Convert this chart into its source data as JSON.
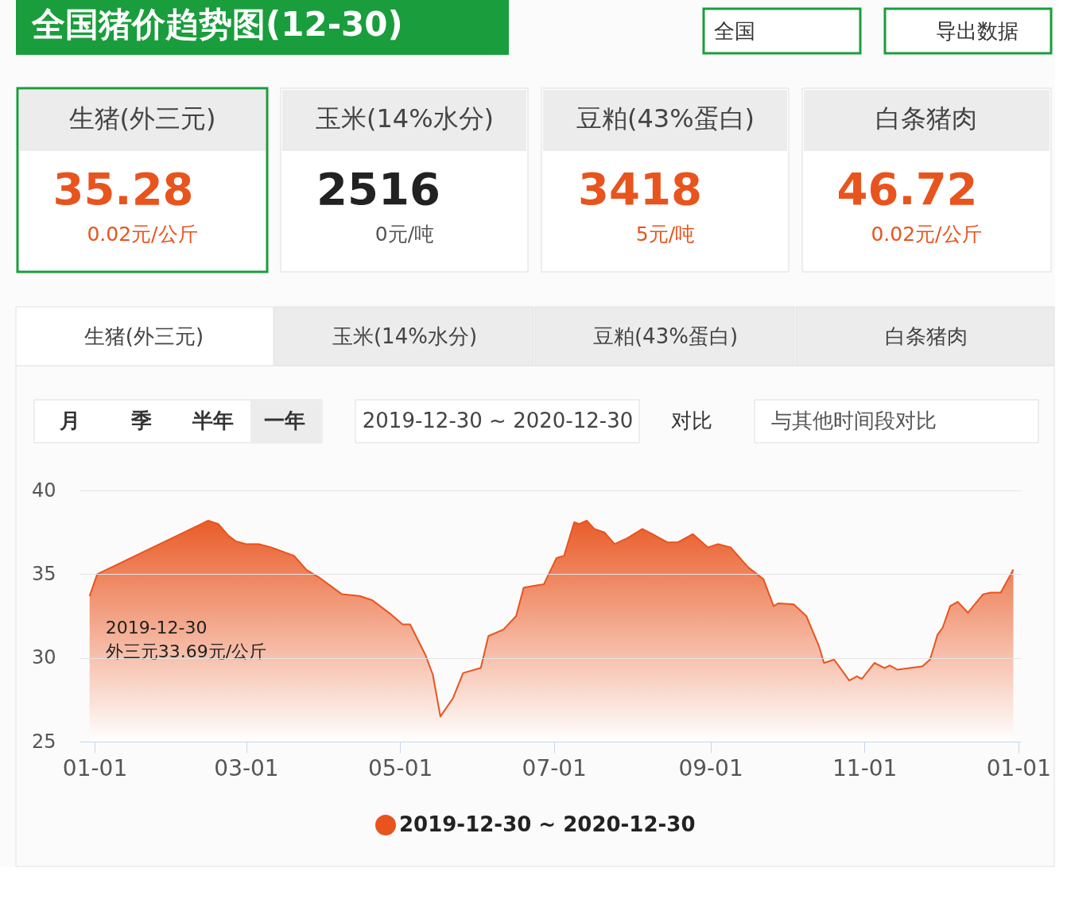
{
  "chart_data": {
    "type": "area",
    "title": "全国猪价趋势图(12-30)",
    "x": [
      "2019-12-30",
      "2020-01-02",
      "2020-02-15",
      "2020-02-19",
      "2020-02-23",
      "2020-02-26",
      "2020-03-01",
      "2020-03-06",
      "2020-03-11",
      "2020-03-20",
      "2020-03-25",
      "2020-03-30",
      "2020-04-08",
      "2020-04-15",
      "2020-04-20",
      "2020-04-27",
      "2020-05-02",
      "2020-05-05",
      "2020-05-11",
      "2020-05-14",
      "2020-05-17",
      "2020-05-22",
      "2020-05-26",
      "2020-06-02",
      "2020-06-05",
      "2020-06-11",
      "2020-06-16",
      "2020-06-19",
      "2020-06-23",
      "2020-06-27",
      "2020-07-02",
      "2020-07-05",
      "2020-07-09",
      "2020-07-11",
      "2020-07-14",
      "2020-07-17",
      "2020-07-21",
      "2020-07-25",
      "2020-07-30",
      "2020-08-05",
      "2020-08-09",
      "2020-08-15",
      "2020-08-19",
      "2020-08-25",
      "2020-08-31",
      "2020-09-04",
      "2020-09-09",
      "2020-09-16",
      "2020-09-22",
      "2020-09-26",
      "2020-09-28",
      "2020-10-04",
      "2020-10-09",
      "2020-10-14",
      "2020-10-16",
      "2020-10-20",
      "2020-10-26",
      "2020-10-29",
      "2020-10-31",
      "2020-11-05",
      "2020-11-09",
      "2020-11-11",
      "2020-11-14",
      "2020-11-24",
      "2020-11-27",
      "2020-11-30",
      "2020-12-02",
      "2020-12-05",
      "2020-12-08",
      "2020-12-12",
      "2020-12-18",
      "2020-12-21",
      "2020-12-25",
      "2020-12-30"
    ],
    "series": [
      {
        "name": "2019-12-30 ~ 2020-12-30",
        "color": "#e8541e",
        "values": [
          33.69,
          35.0,
          38.2,
          38.0,
          37.3,
          36.96,
          36.8,
          36.8,
          36.6,
          36.1,
          35.25,
          34.8,
          33.8,
          33.7,
          33.45,
          32.65,
          32.0,
          32.0,
          30.2,
          29.0,
          26.5,
          27.6,
          29.1,
          29.4,
          31.3,
          31.7,
          32.5,
          34.2,
          34.3,
          34.4,
          35.97,
          36.1,
          38.1,
          38.0,
          38.2,
          37.7,
          37.5,
          36.8,
          37.15,
          37.7,
          37.4,
          36.9,
          36.9,
          37.4,
          36.6,
          36.8,
          36.6,
          35.4,
          34.7,
          33.1,
          33.26,
          33.2,
          32.5,
          30.7,
          29.7,
          29.9,
          28.65,
          28.9,
          28.75,
          29.7,
          29.4,
          29.55,
          29.3,
          29.5,
          29.9,
          31.4,
          31.8,
          33.1,
          33.35,
          32.7,
          33.8,
          33.9,
          33.9,
          35.28
        ]
      }
    ],
    "xlim": [
      "2019-12-26",
      "2021-01-02"
    ],
    "xticks": [
      {
        "value": "2020-01-01",
        "label": "01-01"
      },
      {
        "value": "2020-03-01",
        "label": "03-01"
      },
      {
        "value": "2020-05-01",
        "label": "05-01"
      },
      {
        "value": "2020-07-01",
        "label": "07-01"
      },
      {
        "value": "2020-09-01",
        "label": "09-01"
      },
      {
        "value": "2020-11-01",
        "label": "11-01"
      },
      {
        "value": "2021-01-01",
        "label": "01-01"
      }
    ],
    "ylim": [
      25,
      40
    ],
    "yticks": [
      25,
      30,
      35,
      40
    ],
    "grid": "y",
    "legend": "bottom",
    "annotations": [
      "全国",
      "导出数据",
      "生猪(外三元)",
      "35.28",
      "0.02元/公斤",
      "玉米(14%水分)",
      "2516",
      "0元/吨",
      "豆粕(43%蛋白)",
      "3418",
      "5元/吨",
      "白条猪肉",
      "46.72",
      "0.02元/公斤",
      "生猪(外三元)",
      "玉米(14%水分)",
      "豆粕(43%蛋白)",
      "白条猪肉",
      "月",
      "季",
      "半年",
      "一年",
      "2019-12-30 ~ 2020-12-30",
      "对比",
      "与其他时间段对比",
      {
        "text": "2019-12-30",
        "x": "2019-12-30",
        "y": 33.69
      },
      {
        "text": "外三元33.69元/公斤",
        "x": "2019-12-30",
        "y": 33.69
      }
    ]
  }
}
